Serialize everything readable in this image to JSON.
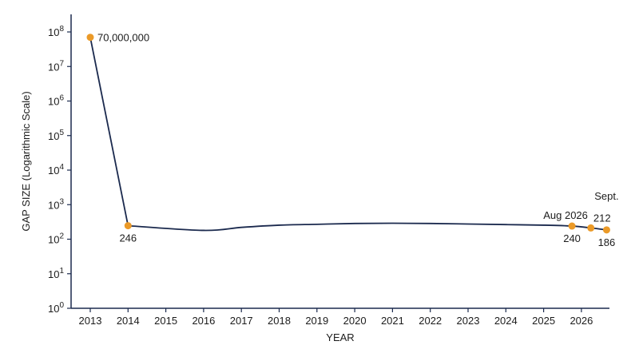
{
  "chart_data": {
    "type": "line",
    "title": "",
    "xlabel": "YEAR",
    "ylabel": "GAP SIZE (Logarithmic Scale)",
    "y_scale": "log",
    "y_base": 10,
    "ylim": [
      1,
      100000000
    ],
    "y_tick_exponents": [
      0,
      1,
      2,
      3,
      4,
      5,
      6,
      7,
      8
    ],
    "x_ticks": [
      "2013",
      "2014",
      "2015",
      "2016",
      "2017",
      "2018",
      "2019",
      "2020",
      "2021",
      "2022",
      "2023",
      "2024",
      "2025",
      "2026"
    ],
    "grid": false,
    "line_color": "#1b2a4e",
    "marker_color": "#eb9a28",
    "markers": [
      {
        "date": "2013-01",
        "value": 70000000,
        "label": "70,000,000"
      },
      {
        "date": "2014-01",
        "value": 246,
        "label": "246"
      },
      {
        "date": "2025-10",
        "value": 240,
        "label": "240",
        "annotation": "Aug 2026"
      },
      {
        "date": "2026-04",
        "value": 212,
        "label": "212"
      },
      {
        "date": "2026-09",
        "value": 186,
        "label": "186",
        "annotation": "Sept."
      }
    ],
    "trend_between_markers": [
      {
        "date": "2016-01",
        "value": 180
      },
      {
        "date": "2017-01",
        "value": 220
      },
      {
        "date": "2018-01",
        "value": 255
      },
      {
        "date": "2019-01",
        "value": 270
      },
      {
        "date": "2020-01",
        "value": 285
      },
      {
        "date": "2021-01",
        "value": 290
      },
      {
        "date": "2022-01",
        "value": 285
      },
      {
        "date": "2023-01",
        "value": 275
      },
      {
        "date": "2024-01",
        "value": 265
      },
      {
        "date": "2025-01",
        "value": 255
      }
    ]
  }
}
